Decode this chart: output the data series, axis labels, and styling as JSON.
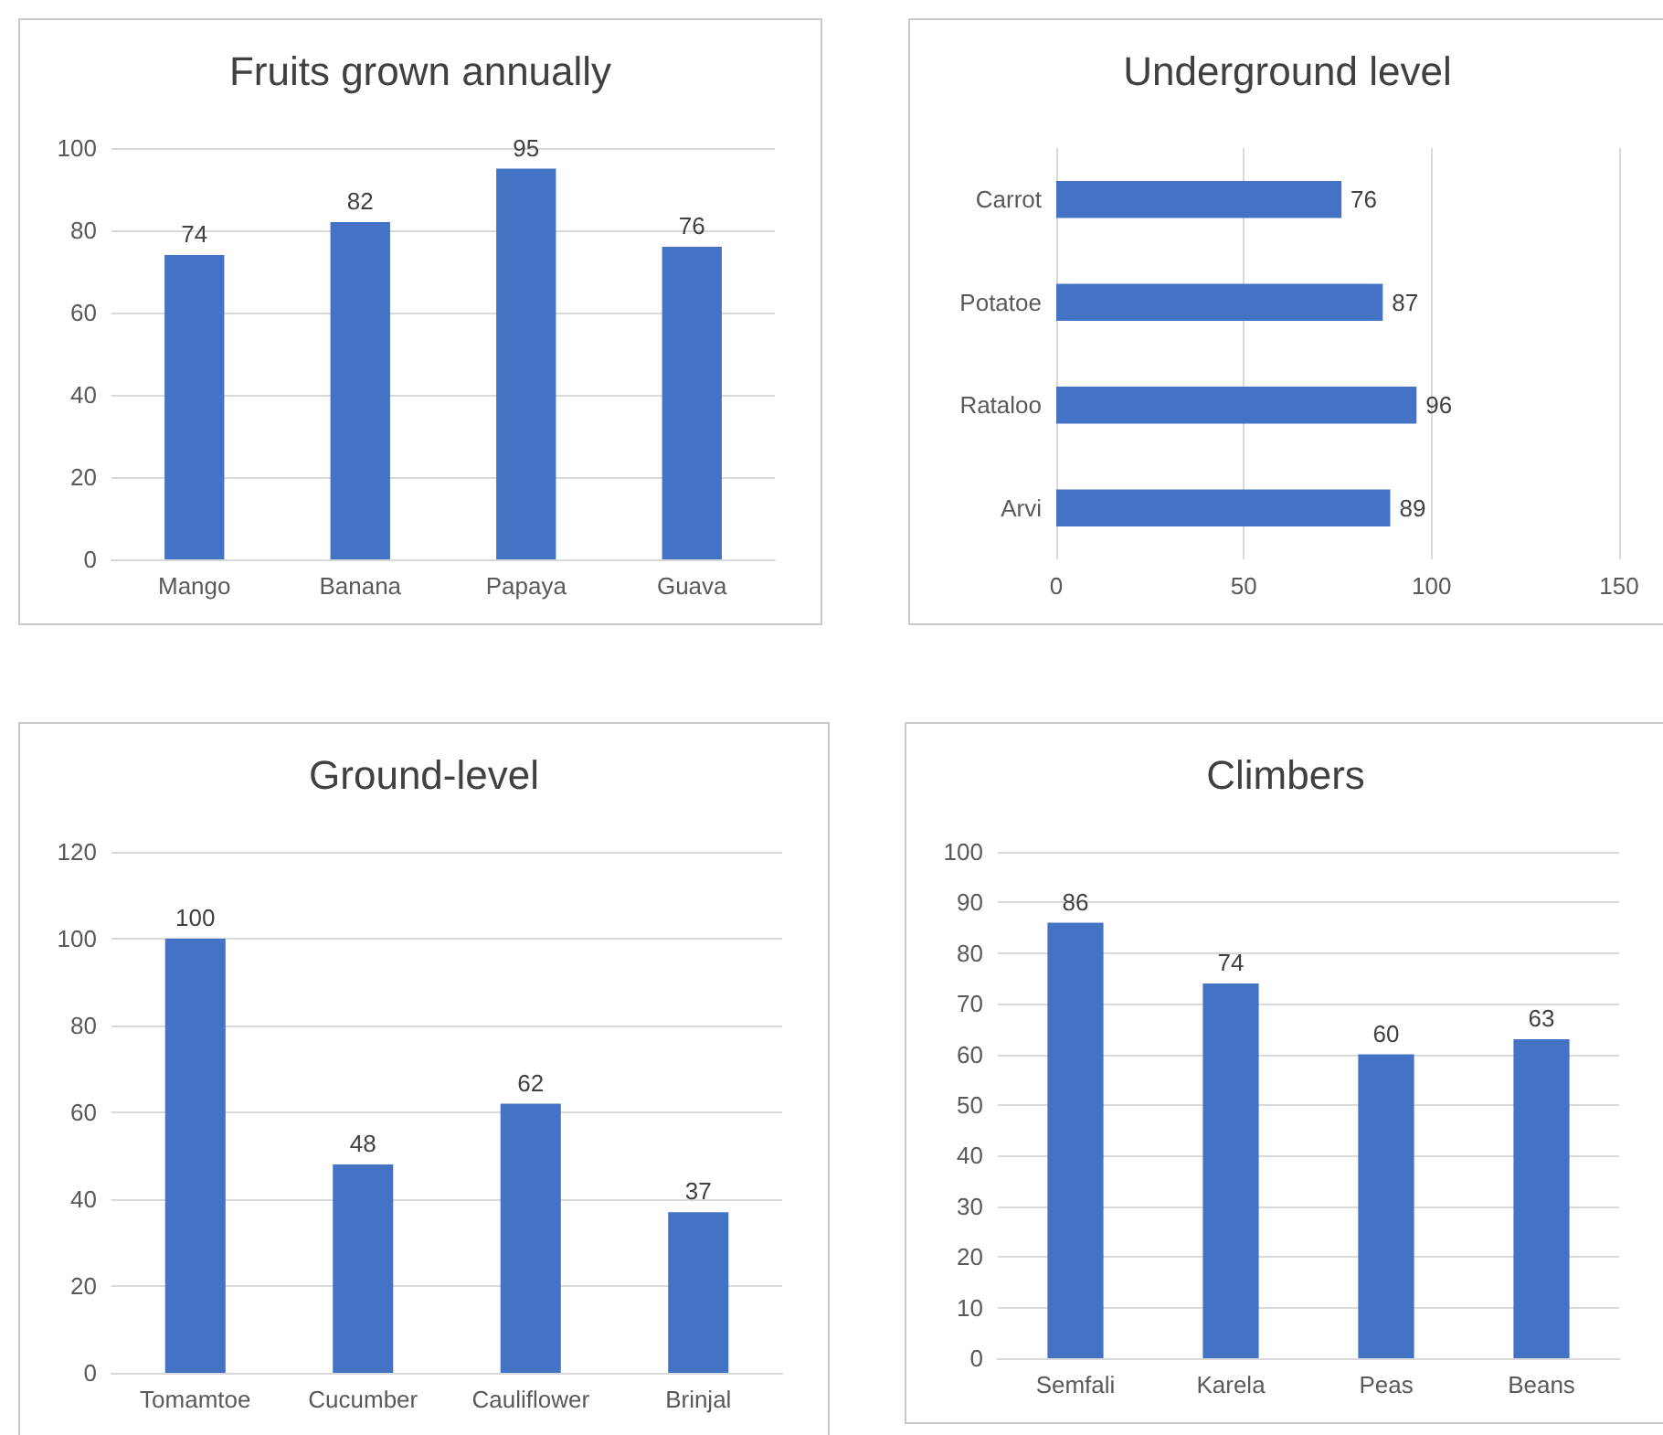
{
  "chart_data": [
    {
      "type": "bar",
      "title": "Fruits grown annually",
      "categories": [
        "Mango",
        "Banana",
        "Papaya",
        "Guava"
      ],
      "values": [
        74,
        82,
        95,
        76
      ],
      "color": "#4472c4",
      "ylim": [
        0,
        100
      ],
      "yticks": [
        0,
        20,
        40,
        60,
        80,
        100
      ],
      "grid": "y",
      "data_labels": true
    },
    {
      "type": "bar",
      "orientation": "horizontal",
      "title": "Underground level",
      "categories": [
        "Carrot",
        "Potatoe",
        "Rataloo",
        "Arvi"
      ],
      "values": [
        76,
        87,
        96,
        89
      ],
      "color": "#4472c4",
      "xlim": [
        0,
        150
      ],
      "xticks": [
        0,
        50,
        100,
        150
      ],
      "grid": "x",
      "data_labels": true
    },
    {
      "type": "bar",
      "title": "Ground-level",
      "categories": [
        "Tomamtoe",
        "Cucumber",
        "Cauliflower",
        "Brinjal"
      ],
      "values": [
        100,
        48,
        62,
        37
      ],
      "color": "#4472c4",
      "ylim": [
        0,
        120
      ],
      "yticks": [
        0,
        20,
        40,
        60,
        80,
        100,
        120
      ],
      "grid": "y",
      "data_labels": true
    },
    {
      "type": "bar",
      "title": "Climbers",
      "categories": [
        "Semfali",
        "Karela",
        "Peas",
        "Beans"
      ],
      "values": [
        86,
        74,
        60,
        63
      ],
      "color": "#4472c4",
      "ylim": [
        0,
        100
      ],
      "yticks": [
        0,
        10,
        20,
        30,
        40,
        50,
        60,
        70,
        80,
        90,
        100
      ],
      "grid": "y",
      "data_labels": true
    }
  ]
}
